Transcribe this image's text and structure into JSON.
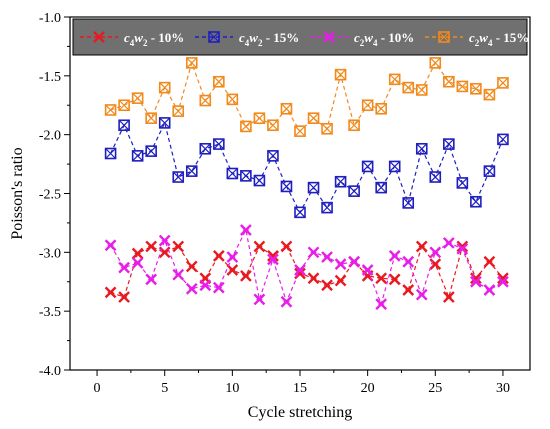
{
  "chart_data": {
    "type": "line",
    "xlabel": "Cycle stretching",
    "ylabel": "Poisson's ratio",
    "xlim": [
      -2,
      32
    ],
    "ylim": [
      -4.0,
      -1.0
    ],
    "xticks": [
      "0",
      "5",
      "10",
      "15",
      "20",
      "25",
      "30"
    ],
    "yticks": [
      "-1.0",
      "-1.5",
      "-2.0",
      "-2.5",
      "-3.0",
      "-3.5",
      "-4.0"
    ],
    "grid": false,
    "legend_position": "top",
    "legend_background": "#707070",
    "x": [
      1,
      2,
      3,
      4,
      5,
      6,
      7,
      8,
      9,
      10,
      11,
      12,
      13,
      14,
      15,
      16,
      17,
      18,
      19,
      20,
      21,
      22,
      23,
      24,
      25,
      26,
      27,
      28,
      29,
      30
    ],
    "series": [
      {
        "name_base": "c",
        "name_sub1": "4",
        "name_mid": "w",
        "name_sub2": "2",
        "name_suffix": " - 10%",
        "color": "#e8191f",
        "marker": "x",
        "values": [
          -3.34,
          -3.38,
          -3.01,
          -2.95,
          -3.0,
          -2.95,
          -3.12,
          -3.22,
          -3.03,
          -3.15,
          -3.2,
          -2.95,
          -3.03,
          -2.95,
          -3.18,
          -3.22,
          -3.28,
          -3.24,
          -3.08,
          -3.2,
          -3.22,
          -3.23,
          -3.32,
          -2.95,
          -3.1,
          -3.38,
          -2.95,
          -3.22,
          -3.08,
          -3.22
        ]
      },
      {
        "name_base": "c",
        "name_sub1": "4",
        "name_mid": "w",
        "name_sub2": "2",
        "name_suffix": " - 15%",
        "color": "#1f1fbf",
        "marker": "square",
        "values": [
          -2.16,
          -1.92,
          -2.18,
          -2.14,
          -1.9,
          -2.36,
          -2.31,
          -2.12,
          -2.08,
          -2.33,
          -2.35,
          -2.39,
          -2.18,
          -2.44,
          -2.66,
          -2.45,
          -2.62,
          -2.4,
          -2.48,
          -2.27,
          -2.45,
          -2.27,
          -2.58,
          -2.12,
          -2.36,
          -2.08,
          -2.41,
          -2.57,
          -2.31,
          -2.04
        ]
      },
      {
        "name_base": "c",
        "name_sub1": "2",
        "name_mid": "w",
        "name_sub2": "4",
        "name_suffix": " - 10%",
        "color": "#e81ee8",
        "marker": "x",
        "values": [
          -2.94,
          -3.13,
          -3.09,
          -3.23,
          -2.9,
          -3.19,
          -3.31,
          -3.28,
          -3.3,
          -3.04,
          -2.81,
          -3.4,
          -3.06,
          -3.42,
          -3.15,
          -3.0,
          -3.04,
          -3.1,
          -3.08,
          -3.15,
          -3.44,
          -3.03,
          -3.08,
          -3.36,
          -3.0,
          -2.92,
          -2.97,
          -3.25,
          -3.32,
          -3.25
        ]
      },
      {
        "name_base": "c",
        "name_sub1": "2",
        "name_mid": "w",
        "name_sub2": "4",
        "name_suffix": " - 15%",
        "color": "#f08a1c",
        "marker": "square",
        "values": [
          -1.79,
          -1.75,
          -1.69,
          -1.86,
          -1.6,
          -1.8,
          -1.39,
          -1.71,
          -1.55,
          -1.7,
          -1.93,
          -1.86,
          -1.92,
          -1.78,
          -1.97,
          -1.86,
          -1.95,
          -1.49,
          -1.92,
          -1.75,
          -1.78,
          -1.53,
          -1.6,
          -1.62,
          -1.39,
          -1.55,
          -1.59,
          -1.61,
          -1.66,
          -1.56
        ]
      }
    ]
  }
}
